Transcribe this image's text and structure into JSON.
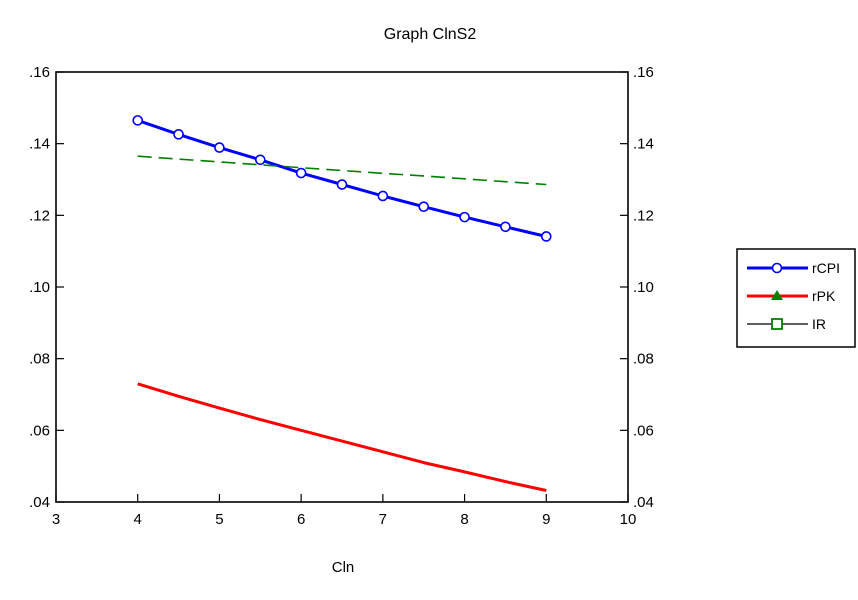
{
  "chart_data": {
    "type": "line",
    "title": "Graph ClnS2",
    "xlabel": "Cln",
    "ylabel": "",
    "xlim": [
      3,
      10
    ],
    "ylim": [
      0.04,
      0.16
    ],
    "x_ticks": [
      3,
      4,
      5,
      6,
      7,
      8,
      9,
      10
    ],
    "x_tick_labels": [
      "3",
      "4",
      "5",
      "6",
      "7",
      "8",
      "9",
      "10"
    ],
    "y_ticks": [
      0.04,
      0.06,
      0.08,
      0.1,
      0.12,
      0.14,
      0.16
    ],
    "y_tick_labels": [
      ".04",
      ".06",
      ".08",
      ".10",
      ".12",
      ".14",
      ".16"
    ],
    "grid": false,
    "legend_position": "right",
    "x": [
      4,
      4.5,
      5,
      5.5,
      6,
      6.5,
      7,
      7.5,
      8,
      8.5,
      9
    ],
    "series": [
      {
        "name": "rCPI",
        "color": "#0000ff",
        "line_style": "solid",
        "marker": "open-circle",
        "values": [
          0.1465,
          0.1426,
          0.1389,
          0.1355,
          0.1318,
          0.1286,
          0.1254,
          0.1224,
          0.1195,
          0.1168,
          0.1141
        ]
      },
      {
        "name": "rPK",
        "color": "#ff0000",
        "line_style": "solid",
        "marker": "filled-triangle",
        "marker_color": "#007f00",
        "values": [
          0.073,
          0.0695,
          0.0662,
          0.063,
          0.06,
          0.057,
          0.054,
          0.051,
          0.0484,
          0.0457,
          0.0432
        ]
      },
      {
        "name": "IR",
        "color": "#008000",
        "line_style": "dashed",
        "marker": "open-square",
        "values": [
          0.1365,
          0.1357,
          0.1349,
          0.1341,
          0.1333,
          0.1325,
          0.1317,
          0.131,
          0.1302,
          0.1294,
          0.1286
        ]
      }
    ]
  }
}
